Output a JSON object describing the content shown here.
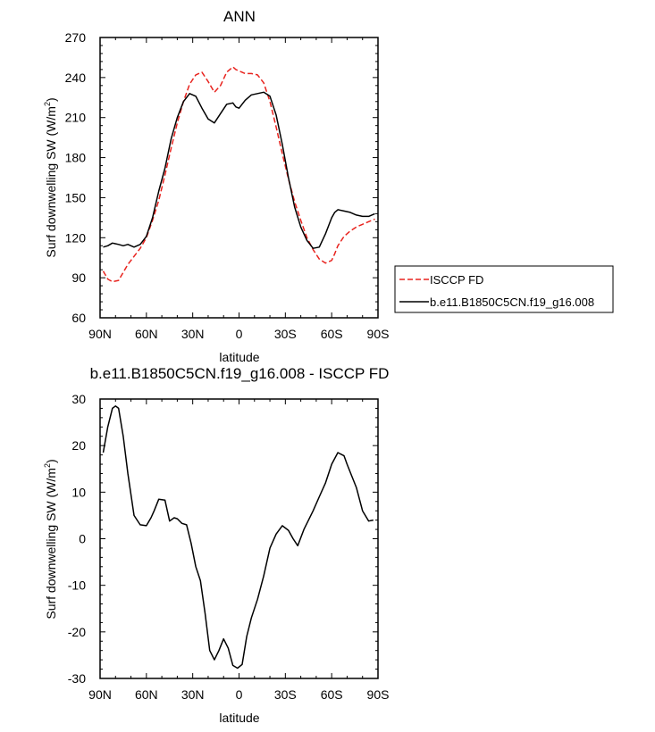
{
  "chart_data": [
    {
      "type": "line",
      "title": "ANN",
      "xlabel": "latitude",
      "ylabel": "Surf downwelling SW (W/m",
      "ylabel_sup": "2",
      "ylabel_close": ")",
      "xlim": [
        90,
        -90
      ],
      "ylim": [
        60,
        270
      ],
      "xticks": [
        90,
        60,
        30,
        0,
        -30,
        -60,
        -90
      ],
      "xtick_labels": [
        "90N",
        "60N",
        "30N",
        "0",
        "30S",
        "60S",
        "90S"
      ],
      "yticks": [
        60,
        90,
        120,
        150,
        180,
        210,
        240,
        270
      ],
      "ytick_labels": [
        "60",
        "90",
        "120",
        "150",
        "180",
        "210",
        "240",
        "270"
      ],
      "legend_position": "right",
      "series": [
        {
          "name": "ISCCP FD",
          "color": "#e8231e",
          "dash": "dashed",
          "x": [
            88,
            85,
            82,
            78,
            75,
            72,
            68,
            64,
            60,
            56,
            52,
            48,
            44,
            40,
            36,
            32,
            28,
            24,
            20,
            16,
            12,
            8,
            4,
            2,
            0,
            -4,
            -8,
            -12,
            -16,
            -20,
            -24,
            -28,
            -32,
            -36,
            -40,
            -44,
            -48,
            -52,
            -56,
            -60,
            -62,
            -64,
            -68,
            -72,
            -76,
            -80,
            -84,
            -88
          ],
          "y": [
            95,
            89,
            87,
            88,
            94,
            100,
            106,
            112,
            120,
            133,
            148,
            167,
            187,
            206,
            222,
            235,
            242,
            244,
            237,
            229,
            234,
            244,
            248,
            246,
            245,
            243,
            243,
            242,
            236,
            222,
            203,
            183,
            164,
            147,
            133,
            120,
            111,
            104,
            101,
            103,
            108,
            114,
            121,
            125,
            128,
            130,
            132,
            134
          ]
        },
        {
          "name": "b.e11.B1850C5CN.f19_g16.008",
          "color": "#000000",
          "dash": "solid",
          "x": [
            88,
            85,
            82,
            78,
            75,
            72,
            68,
            64,
            60,
            56,
            52,
            48,
            44,
            40,
            36,
            32,
            28,
            24,
            20,
            16,
            12,
            8,
            4,
            2,
            0,
            -4,
            -8,
            -12,
            -16,
            -20,
            -24,
            -28,
            -32,
            -36,
            -40,
            -44,
            -48,
            -52,
            -56,
            -60,
            -62,
            -64,
            -68,
            -72,
            -76,
            -80,
            -84,
            -88
          ],
          "y": [
            113,
            114,
            116,
            115,
            114,
            115,
            113,
            115,
            121,
            135,
            155,
            172,
            194,
            210,
            222,
            228,
            226,
            217,
            209,
            206,
            213,
            220,
            221,
            218,
            217,
            223,
            227,
            228,
            229,
            226,
            212,
            190,
            165,
            143,
            128,
            118,
            112,
            113,
            123,
            135,
            139,
            141,
            140,
            139,
            137,
            136,
            136,
            138
          ]
        }
      ]
    },
    {
      "type": "line",
      "title": "b.e11.B1850C5CN.f19_g16.008 - ISCCP FD",
      "xlabel": "latitude",
      "ylabel": "Surf downwelling SW (W/m",
      "ylabel_sup": "2",
      "ylabel_close": ")",
      "xlim": [
        90,
        -90
      ],
      "ylim": [
        -30,
        30
      ],
      "xticks": [
        90,
        60,
        30,
        0,
        -30,
        -60,
        -90
      ],
      "xtick_labels": [
        "90N",
        "60N",
        "30N",
        "0",
        "30S",
        "60S",
        "90S"
      ],
      "yticks": [
        -30,
        -20,
        -10,
        0,
        10,
        20,
        30
      ],
      "ytick_labels": [
        "-30",
        "-20",
        "-10",
        "0",
        "10",
        "20",
        "30"
      ],
      "series": [
        {
          "color": "#000000",
          "dash": "solid",
          "x": [
            88,
            85,
            82,
            80,
            78,
            75,
            72,
            68,
            64,
            60,
            57,
            55,
            52,
            48,
            45,
            42,
            40,
            37,
            34,
            31,
            28,
            25,
            22,
            19,
            16,
            13,
            10,
            7,
            4,
            1,
            -2,
            -5,
            -8,
            -12,
            -16,
            -20,
            -24,
            -28,
            -32,
            -35,
            -38,
            -42,
            -45,
            -48,
            -52,
            -56,
            -60,
            -64,
            -68,
            -70,
            -73,
            -76,
            -80,
            -84,
            -87
          ],
          "y": [
            18.5,
            24,
            28,
            28.5,
            28,
            22,
            14,
            5,
            3,
            2.8,
            4.5,
            6,
            8.5,
            8.3,
            3.8,
            4.5,
            4.3,
            3.3,
            3.0,
            -1,
            -6,
            -9,
            -16,
            -24,
            -26,
            -24,
            -21.5,
            -23.5,
            -27.2,
            -27.8,
            -27,
            -21,
            -17,
            -13,
            -8,
            -2,
            1,
            2.8,
            1.8,
            0,
            -1.5,
            2,
            4,
            6,
            9,
            12,
            16,
            18.5,
            17.8,
            16,
            13.5,
            11,
            6,
            3.8,
            4
          ]
        }
      ]
    }
  ]
}
